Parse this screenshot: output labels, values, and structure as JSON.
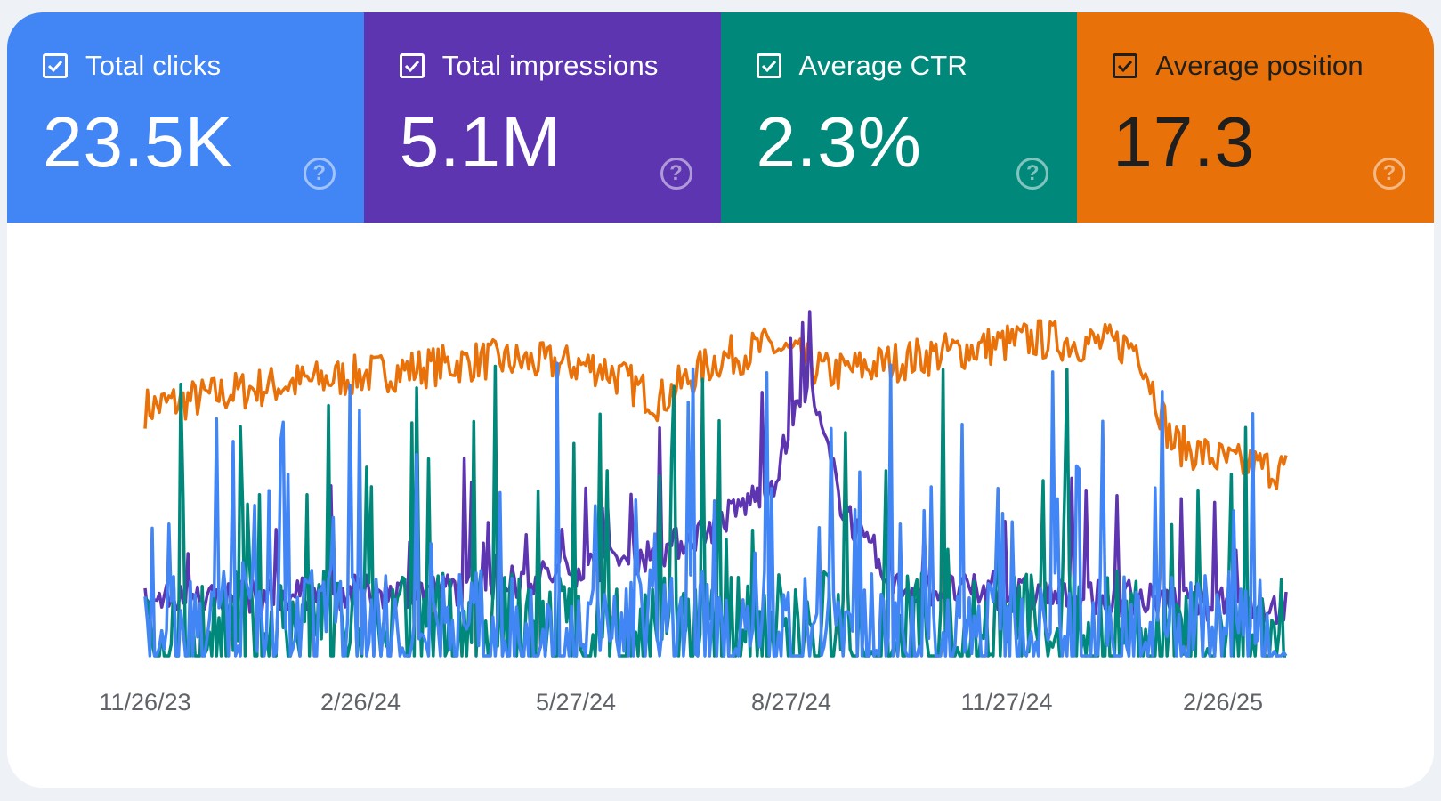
{
  "metrics": [
    {
      "label": "Total clicks",
      "value": "23.5K",
      "checked": true,
      "color": "#4285f4",
      "text_color": "#ffffff",
      "icon": "help-circle-icon"
    },
    {
      "label": "Total impressions",
      "value": "5.1M",
      "checked": true,
      "color": "#5e35b1",
      "text_color": "#ffffff",
      "icon": "help-circle-icon"
    },
    {
      "label": "Average CTR",
      "value": "2.3%",
      "checked": true,
      "color": "#00897b",
      "text_color": "#ffffff",
      "icon": "help-circle-icon"
    },
    {
      "label": "Average position",
      "value": "17.3",
      "checked": true,
      "color": "#e8710a",
      "text_color": "#1f1f1f",
      "icon": "help-circle-icon"
    }
  ],
  "help_glyph": "?",
  "chart_data": {
    "type": "line",
    "x_start": "11/26/23",
    "x_end": "3/18/25",
    "xticks": [
      "11/26/23",
      "2/26/24",
      "5/27/24",
      "8/27/24",
      "11/27/24",
      "2/26/25"
    ],
    "grid": false,
    "legend": "metric tiles above chart",
    "series": [
      {
        "name": "Average position",
        "color": "#e8710a",
        "level": 0.73,
        "var": 0.06,
        "shape": [
          [
            0,
            0.72
          ],
          [
            0.1,
            0.78
          ],
          [
            0.2,
            0.82
          ],
          [
            0.3,
            0.86
          ],
          [
            0.4,
            0.84
          ],
          [
            0.45,
            0.74
          ],
          [
            0.5,
            0.86
          ],
          [
            0.55,
            0.9
          ],
          [
            0.6,
            0.82
          ],
          [
            0.7,
            0.88
          ],
          [
            0.78,
            0.92
          ],
          [
            0.87,
            0.9
          ],
          [
            0.9,
            0.62
          ],
          [
            0.95,
            0.56
          ],
          [
            1,
            0.54
          ]
        ]
      },
      {
        "name": "Total impressions",
        "color": "#5e35b1",
        "level": 0.16,
        "var": 0.05,
        "shape": [
          [
            0,
            0.16
          ],
          [
            0.3,
            0.2
          ],
          [
            0.45,
            0.3
          ],
          [
            0.5,
            0.38
          ],
          [
            0.55,
            0.5
          ],
          [
            0.58,
            0.8
          ],
          [
            0.61,
            0.45
          ],
          [
            0.65,
            0.2
          ],
          [
            1,
            0.14
          ]
        ]
      },
      {
        "name": "Average CTR",
        "color": "#00897b",
        "level": 0.1,
        "var": 0.08,
        "shape": [
          [
            0,
            0.1
          ],
          [
            1,
            0.1
          ]
        ]
      },
      {
        "name": "Total clicks",
        "color": "#4285f4",
        "level": 0.08,
        "var": 0.07,
        "shape": [
          [
            0,
            0.08
          ],
          [
            1,
            0.08
          ]
        ]
      }
    ]
  }
}
